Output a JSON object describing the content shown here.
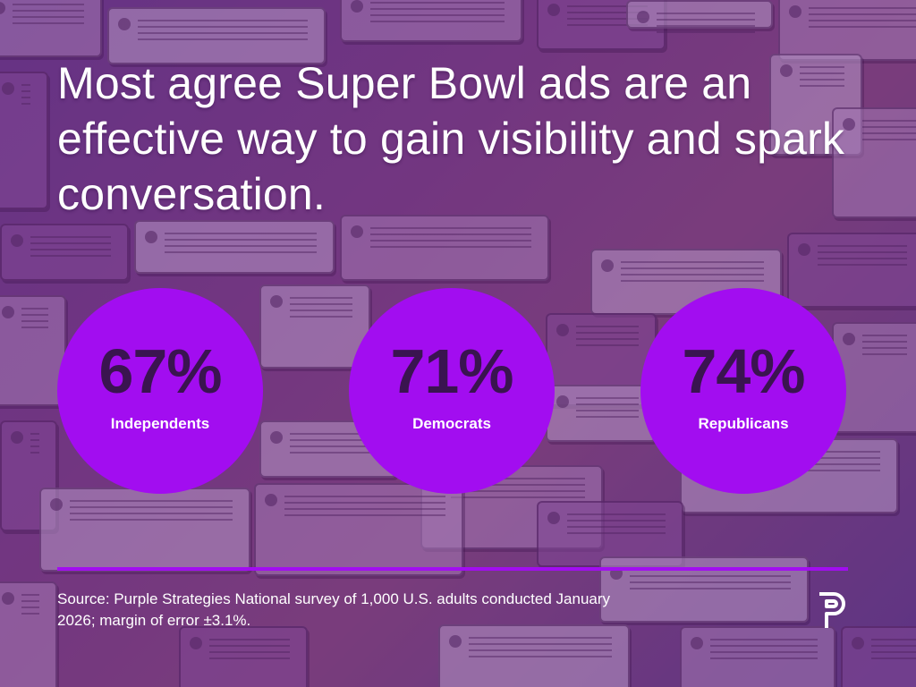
{
  "headline": "Most agree Super Bowl ads are an effective way to gain visibility and spark conversation.",
  "source_note": "Source: Purple Strategies National survey of 1,000 U.S. adults conducted January 2026; margin of error ±3.1%.",
  "colors": {
    "bubble": "#a20df0",
    "percent_text": "#3a1450",
    "rule": "#a20df0",
    "text": "#ffffff"
  },
  "logo_icon": "purple-strategies-p-logo",
  "chart_data": {
    "type": "bubble-stat",
    "categories": [
      "Independents",
      "Democrats",
      "Republicans"
    ],
    "values": [
      67,
      71,
      74
    ],
    "value_labels": [
      "67%",
      "71%",
      "74%"
    ],
    "unit": "%"
  }
}
